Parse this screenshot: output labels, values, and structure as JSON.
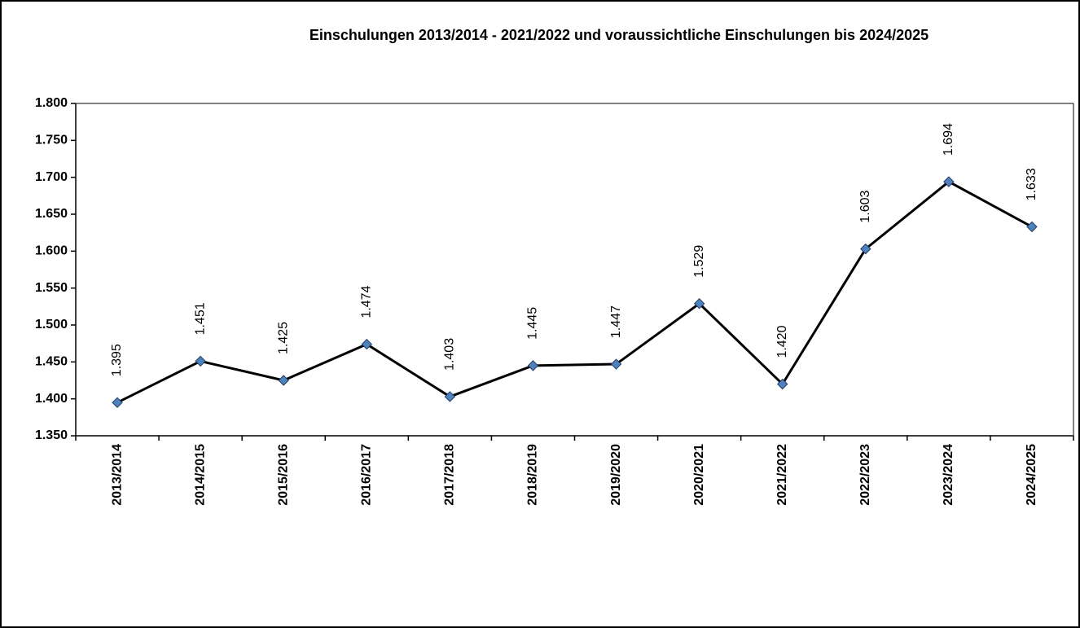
{
  "chart_data": {
    "type": "line",
    "title": "Einschulungen 2013/2014 - 2021/2022 und voraussichtliche Einschulungen bis 2024/2025",
    "categories": [
      "2013/2014",
      "2014/2015",
      "2015/2016",
      "2016/2017",
      "2017/2018",
      "2018/2019",
      "2019/2020",
      "2020/2021",
      "2021/2022",
      "2022/2023",
      "2023/2024",
      "2024/2025"
    ],
    "values": [
      1395,
      1451,
      1425,
      1474,
      1403,
      1445,
      1447,
      1529,
      1420,
      1603,
      1694,
      1633
    ],
    "value_labels": [
      "1.395",
      "1.451",
      "1.425",
      "1.474",
      "1.403",
      "1.445",
      "1.447",
      "1.529",
      "1.420",
      "1.603",
      "1.694",
      "1.633"
    ],
    "color": "#000000",
    "marker_color": "#4f81bd",
    "ylim": [
      1350,
      1800
    ],
    "yticks": [
      {
        "value": 1350,
        "label": "1.350"
      },
      {
        "value": 1400,
        "label": "1.400"
      },
      {
        "value": 1450,
        "label": "1.450"
      },
      {
        "value": 1500,
        "label": "1.500"
      },
      {
        "value": 1550,
        "label": "1.550"
      },
      {
        "value": 1600,
        "label": "1.600"
      },
      {
        "value": 1650,
        "label": "1.650"
      },
      {
        "value": 1700,
        "label": "1.700"
      },
      {
        "value": 1750,
        "label": "1.750"
      },
      {
        "value": 1800,
        "label": "1.800"
      }
    ],
    "grid": false
  }
}
